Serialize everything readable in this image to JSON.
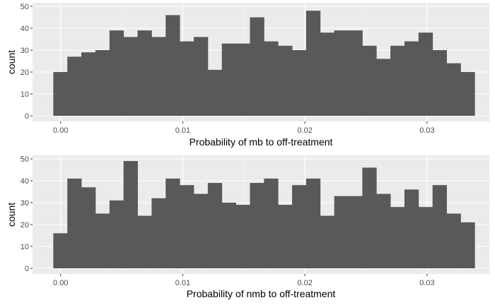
{
  "chart_data": [
    {
      "type": "bar",
      "subtype": "histogram",
      "xlabel": "Probability of mb to off-treatment",
      "ylabel": "count",
      "xlim": [
        -0.0023,
        0.0351
      ],
      "ylim": [
        0,
        50
      ],
      "x_ticks": [
        0.0,
        0.01,
        0.02,
        0.03
      ],
      "x_tick_labels": [
        "0.00",
        "0.01",
        "0.02",
        "0.03"
      ],
      "y_ticks": [
        0,
        10,
        20,
        30,
        40,
        50
      ],
      "y_tick_labels": [
        "0",
        "10",
        "20",
        "30",
        "40",
        "50"
      ],
      "bin_width": 0.00115,
      "first_bin_start": -0.0006,
      "values": [
        20,
        27,
        29,
        30,
        39,
        36,
        39,
        36,
        46,
        34,
        36,
        21,
        33,
        33,
        45,
        34,
        32,
        30,
        48,
        38,
        39,
        39,
        32,
        26,
        32,
        34,
        38,
        30,
        24,
        20
      ],
      "grid": true,
      "bar_color": "#595959",
      "panel_background": "#ebebeb"
    },
    {
      "type": "bar",
      "subtype": "histogram",
      "xlabel": "Probability of nmb to off-treatment",
      "ylabel": "count",
      "xlim": [
        -0.0023,
        0.0351
      ],
      "ylim": [
        0,
        50
      ],
      "x_ticks": [
        0.0,
        0.01,
        0.02,
        0.03
      ],
      "x_tick_labels": [
        "0.00",
        "0.01",
        "0.02",
        "0.03"
      ],
      "y_ticks": [
        0,
        10,
        20,
        30,
        40,
        50
      ],
      "y_tick_labels": [
        "0",
        "10",
        "20",
        "30",
        "40",
        "50"
      ],
      "bin_width": 0.00115,
      "first_bin_start": -0.0006,
      "values": [
        16,
        41,
        37,
        25,
        31,
        49,
        24,
        32,
        41,
        38,
        34,
        39,
        30,
        29,
        39,
        41,
        29,
        38,
        41,
        24,
        33,
        33,
        46,
        34,
        28,
        36,
        28,
        38,
        25,
        21
      ],
      "grid": true,
      "bar_color": "#595959",
      "panel_background": "#ebebeb"
    }
  ]
}
